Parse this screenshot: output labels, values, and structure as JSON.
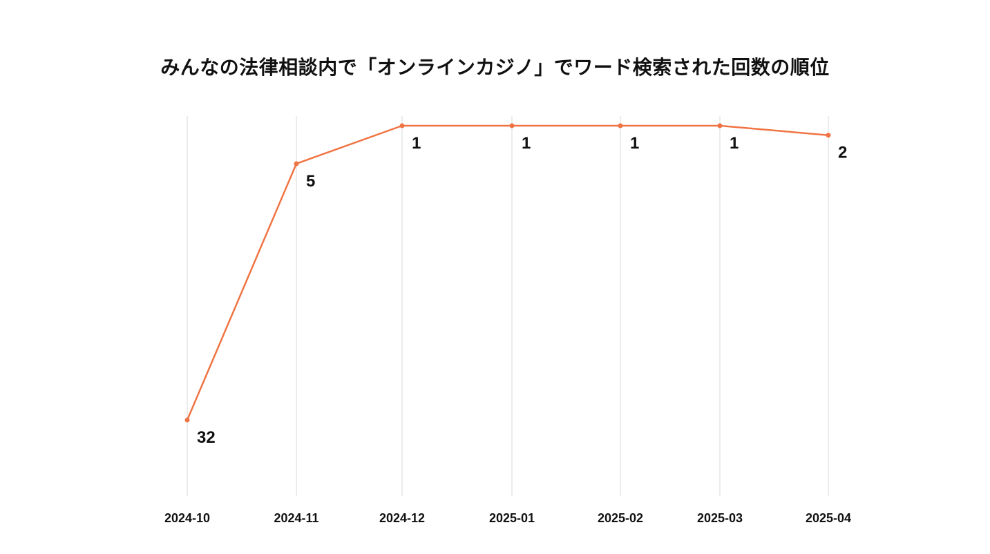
{
  "chart_data": {
    "type": "line",
    "title": "みんなの法律相談内で「オンラインカジノ」でワード検索された回数の順位",
    "xlabel": "",
    "ylabel": "",
    "categories": [
      "2024-10",
      "2024-11",
      "2024-12",
      "2025-01",
      "2025-02",
      "2025-03",
      "2025-04"
    ],
    "series": [
      {
        "values": [
          32,
          5,
          1,
          1,
          1,
          1,
          2
        ],
        "color": "#f07443"
      }
    ],
    "y_reversed": true,
    "ylim": [
      1,
      40
    ],
    "x_grid": true,
    "y_grid": false,
    "legend": "none",
    "data_labels": true
  }
}
